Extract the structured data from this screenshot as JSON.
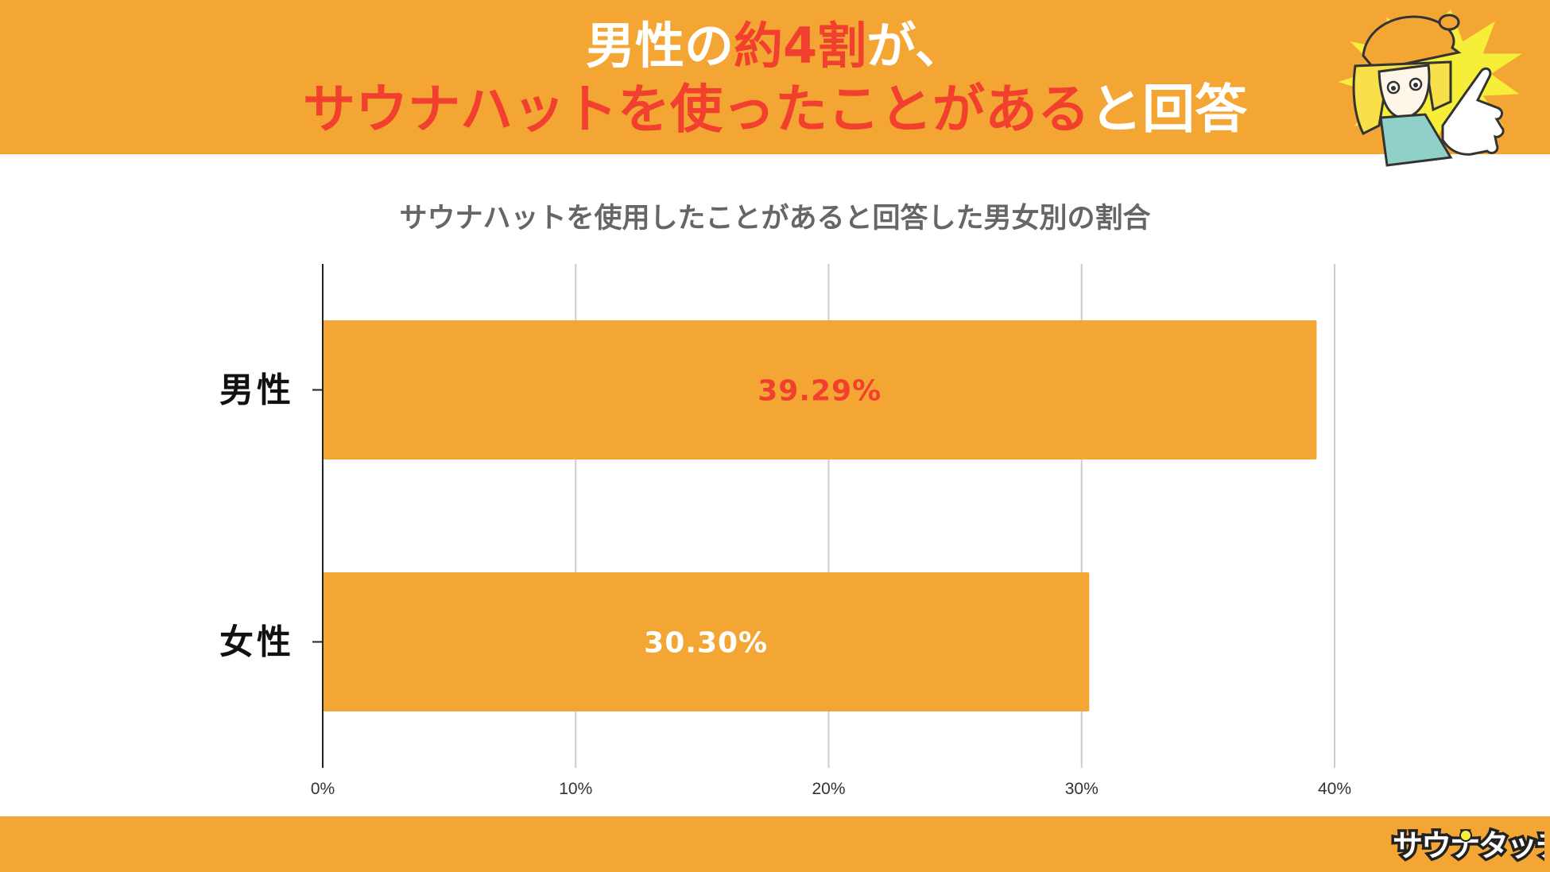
{
  "header": {
    "line1_a": "男性の",
    "line1_b": "約4割",
    "line1_c": "が、",
    "line2_a": "サウナハットを使ったことがある",
    "line2_b": "と回答"
  },
  "colors": {
    "accent": "#F4A634",
    "highlight": "#F2402F",
    "bar": "#F4A634",
    "grid": "#cccccc",
    "axis": "#222222"
  },
  "chart_data": {
    "type": "bar",
    "orientation": "horizontal",
    "title": "サウナハットを使用したことがあると回答した男女別の割合",
    "categories": [
      "男性",
      "女性"
    ],
    "values": [
      39.29,
      30.3
    ],
    "data_labels": [
      "39.29%",
      "30.30%"
    ],
    "data_label_colors": [
      "#F2402F",
      "#ffffff"
    ],
    "x_ticks": [
      "0%",
      "10%",
      "20%",
      "30%",
      "40%"
    ],
    "xlim": [
      0,
      40
    ],
    "grid": true,
    "legend": "none"
  },
  "brand": {
    "logo_text": "サウナタッチ",
    "mascot_icon": "mascot-pointing-girl-icon"
  }
}
